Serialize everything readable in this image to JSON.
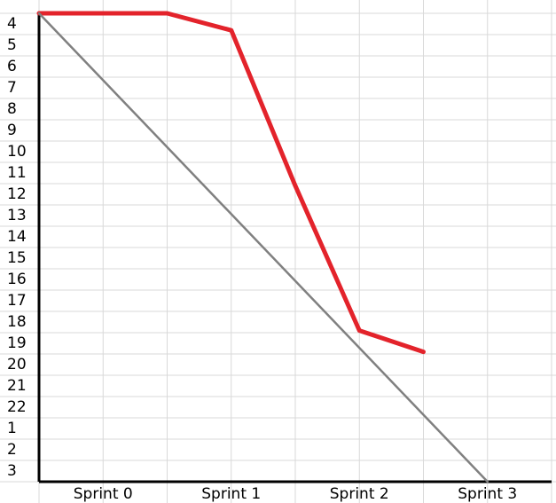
{
  "chart_data": {
    "type": "line",
    "row_labels": [
      "4",
      "5",
      "6",
      "7",
      "8",
      "9",
      "10",
      "11",
      "12",
      "13",
      "14",
      "15",
      "16",
      "17",
      "18",
      "19",
      "20",
      "21",
      "22",
      "1",
      "2",
      "3"
    ],
    "categories": [
      "Sprint 0",
      "Sprint 1",
      "Sprint 2",
      "Sprint 3"
    ],
    "series": [
      {
        "color": "#e3232b",
        "points": [
          {
            "x": 0,
            "y": 3.5
          },
          {
            "x": 1,
            "y": 3.5
          },
          {
            "x": 1.5,
            "y": 4.3
          },
          {
            "x": 2,
            "y": 11.6
          },
          {
            "x": 2.5,
            "y": 18.4
          },
          {
            "x": 3,
            "y": 19.4
          }
        ]
      },
      {
        "color": "#808080",
        "points": [
          {
            "x": 0,
            "y": 3.5
          },
          {
            "x": 3.5,
            "y": 25.5
          }
        ]
      }
    ],
    "grid": true
  }
}
